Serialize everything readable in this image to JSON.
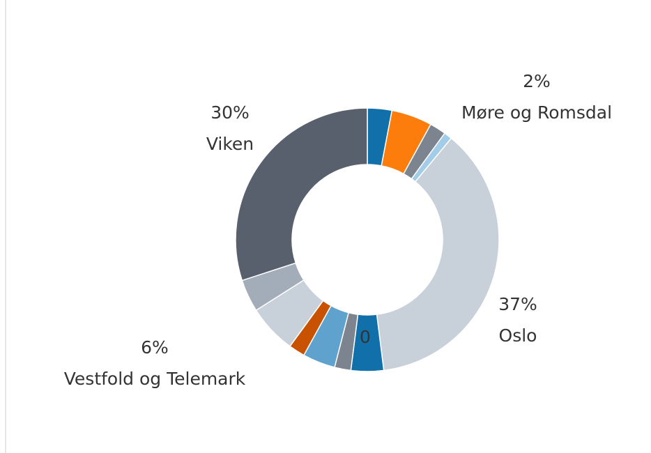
{
  "chart_data": {
    "type": "donut",
    "categories": [
      null,
      null,
      "Møre og Romsdal",
      null,
      "Oslo",
      null,
      null,
      null,
      null,
      "Vestfold og Telemark",
      null,
      "Viken"
    ],
    "values": [
      3,
      5,
      2,
      1,
      37,
      4,
      2,
      4,
      2,
      6,
      4,
      30
    ],
    "value_labels": [
      null,
      null,
      "2%",
      null,
      "37%",
      null,
      null,
      null,
      null,
      "6%",
      null,
      "30%"
    ],
    "colors": [
      "#1170aa",
      "#fc7d0b",
      "#7b848f",
      "#a3cce9",
      "#c8d0d9",
      "#1170aa",
      "#7b848f",
      "#5fa2ce",
      "#c85200",
      "#c8d0d9",
      "#a3acb9",
      "#57606c"
    ],
    "annotations": [
      {
        "text": "0"
      }
    ]
  }
}
